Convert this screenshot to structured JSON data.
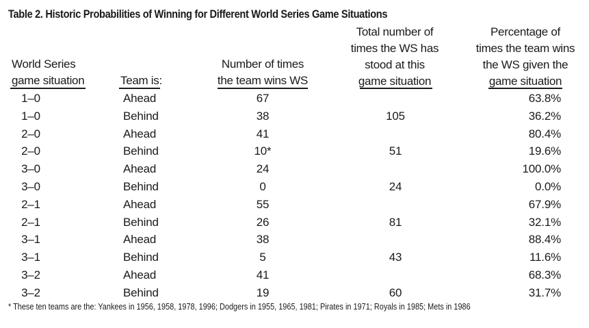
{
  "title": "Table 2.  Historic Probabilities of Winning for Different World Series Game Situations",
  "headers": {
    "situation": [
      "World Series",
      "game situation"
    ],
    "team": [
      "Team is:"
    ],
    "wins": [
      "Number of times",
      "the team wins WS"
    ],
    "total": [
      "Total number of",
      "times the WS has",
      "stood at this",
      "game situation"
    ],
    "pct": [
      "Percentage of",
      "times the team wins",
      "the WS given the",
      "game situation"
    ]
  },
  "rows": [
    {
      "situation": "1–0",
      "team": "Ahead",
      "wins": "67",
      "total": "",
      "pct": "63.8%"
    },
    {
      "situation": "1–0",
      "team": "Behind",
      "wins": "38",
      "total": "105",
      "pct": "36.2%"
    },
    {
      "situation": "2–0",
      "team": "Ahead",
      "wins": "41",
      "total": "",
      "pct": "80.4%"
    },
    {
      "situation": "2–0",
      "team": "Behind",
      "wins": "10*",
      "total": "51",
      "pct": "19.6%"
    },
    {
      "situation": "3–0",
      "team": "Ahead",
      "wins": "24",
      "total": "",
      "pct": "100.0%"
    },
    {
      "situation": "3–0",
      "team": "Behind",
      "wins": "0",
      "total": "24",
      "pct": "0.0%"
    },
    {
      "situation": "2–1",
      "team": "Ahead",
      "wins": "55",
      "total": "",
      "pct": "67.9%"
    },
    {
      "situation": "2–1",
      "team": "Behind",
      "wins": "26",
      "total": "81",
      "pct": "32.1%"
    },
    {
      "situation": "3–1",
      "team": "Ahead",
      "wins": "38",
      "total": "",
      "pct": "88.4%"
    },
    {
      "situation": "3–1",
      "team": "Behind",
      "wins": "5",
      "total": "43",
      "pct": "11.6%"
    },
    {
      "situation": "3–2",
      "team": "Ahead",
      "wins": "41",
      "total": "",
      "pct": "68.3%"
    },
    {
      "situation": "3–2",
      "team": "Behind",
      "wins": "19",
      "total": "60",
      "pct": "31.7%"
    }
  ],
  "footnote": "* These ten teams are the: Yankees in 1956, 1958, 1978, 1996; Dodgers in 1955, 1965, 1981; Pirates in 1971; Royals in 1985; Mets in 1986"
}
